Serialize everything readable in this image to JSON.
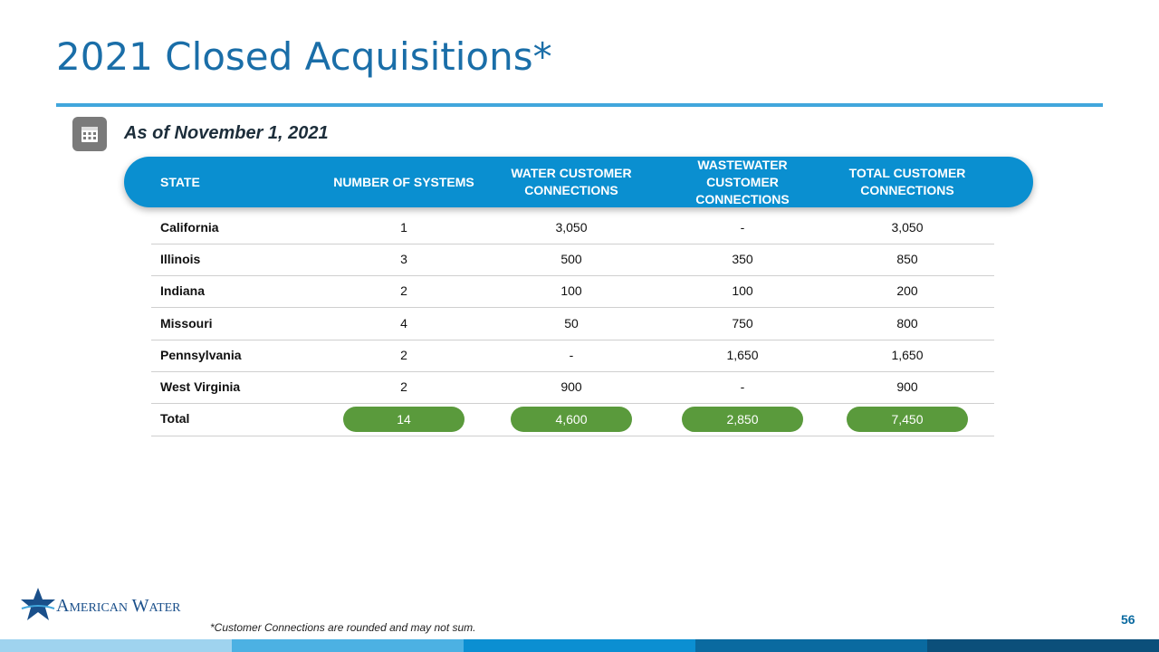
{
  "header": {
    "title": "2021 Closed Acquisitions*",
    "subtitle": "As of November 1, 2021"
  },
  "table": {
    "columns": [
      "STATE",
      "NUMBER OF SYSTEMS",
      "WATER CUSTOMER CONNECTIONS",
      "WASTEWATER CUSTOMER CONNECTIONS",
      "TOTAL CUSTOMER CONNECTIONS"
    ],
    "rows": [
      [
        "California",
        "1",
        "3,050",
        "-",
        "3,050"
      ],
      [
        "Illinois",
        "3",
        "500",
        "350",
        "850"
      ],
      [
        "Indiana",
        "2",
        "100",
        "100",
        "200"
      ],
      [
        "Missouri",
        "4",
        "50",
        "750",
        "800"
      ],
      [
        "Pennsylvania",
        "2",
        "-",
        "1,650",
        "1,650"
      ],
      [
        "West Virginia",
        "2",
        "900",
        "-",
        "900"
      ]
    ],
    "total": [
      "Total",
      "14",
      "4,600",
      "2,850",
      "7,450"
    ]
  },
  "footer": {
    "note": "*Customer Connections are rounded and may not sum.",
    "logo": "American Water",
    "page": "56"
  }
}
